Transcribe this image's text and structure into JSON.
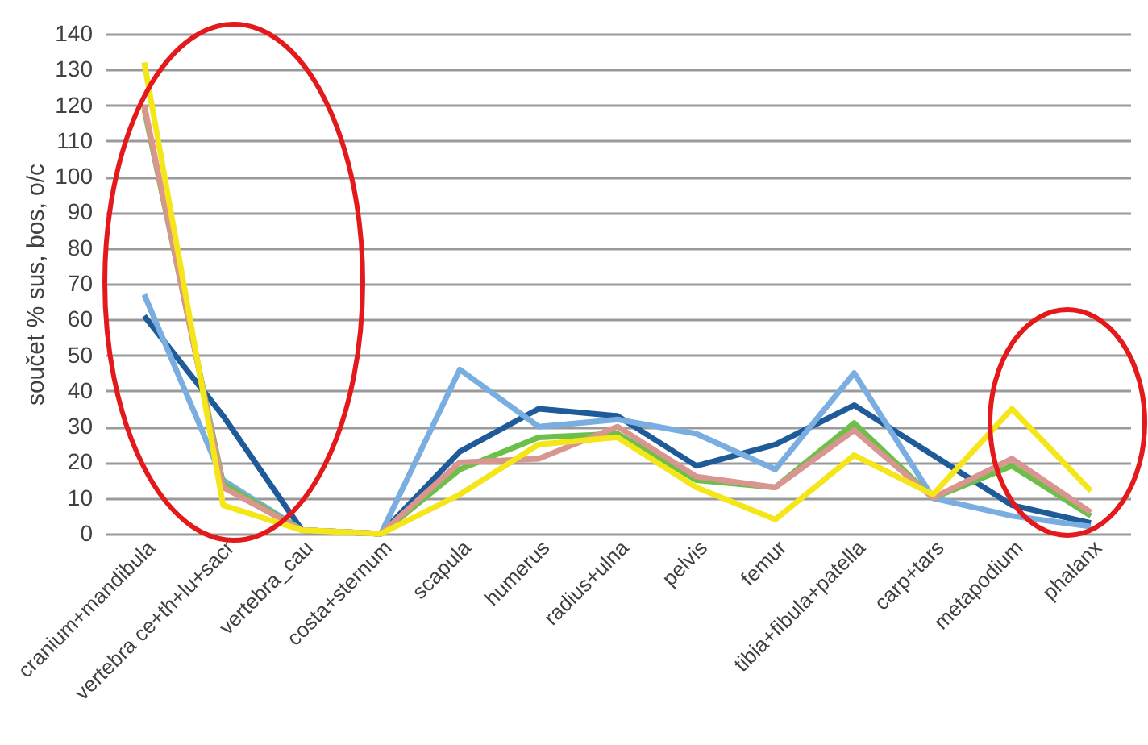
{
  "chart_data": {
    "type": "line",
    "ylabel": "součet % sus, bos, o/c",
    "categories": [
      "cranium+mandibula",
      "vertebra ce+th+lu+sacr",
      "vertebra_cau",
      "costa+sternum",
      "scapula",
      "humerus",
      "radius+ulna",
      "pelvis",
      "femur",
      "tibia+fibula+patella",
      "carp+tars",
      "metapodium",
      "phalanx"
    ],
    "series": [
      {
        "color": "#1f5b99",
        "values": [
          61,
          33,
          1,
          0,
          23,
          35,
          33,
          19,
          25,
          36,
          22,
          8,
          3
        ]
      },
      {
        "color": "#7aaee0",
        "values": [
          67,
          15,
          1,
          0,
          46,
          30,
          32,
          28,
          18,
          45,
          10,
          5,
          2
        ]
      },
      {
        "color": "#6cc04a",
        "values": [
          119,
          14,
          1,
          0,
          18,
          27,
          28,
          15,
          13,
          31,
          10,
          19,
          5
        ]
      },
      {
        "color": "#d9958f",
        "values": [
          120,
          13,
          1,
          0,
          20,
          21,
          30,
          16,
          13,
          29,
          10,
          21,
          6
        ]
      },
      {
        "color": "#f5e61a",
        "values": [
          132,
          8,
          1,
          0,
          11,
          25,
          27,
          13,
          4,
          22,
          11,
          35,
          12
        ]
      }
    ],
    "ylim": [
      0,
      140
    ],
    "yticks": [
      0,
      10,
      20,
      30,
      40,
      50,
      60,
      70,
      80,
      90,
      100,
      110,
      120,
      130,
      140
    ],
    "grid": "y",
    "legend": false,
    "marker": "none",
    "line_style": "solid"
  }
}
